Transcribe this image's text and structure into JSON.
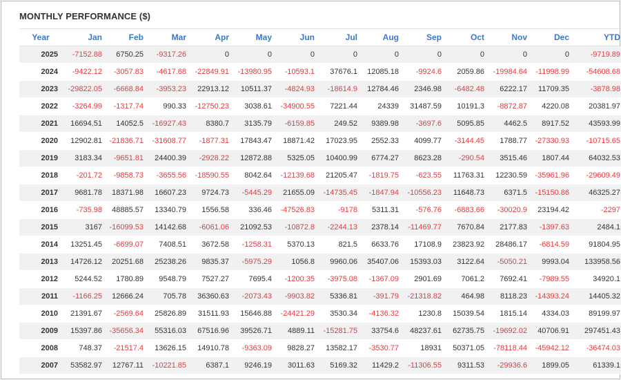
{
  "title": "MONTHLY PERFORMANCE ($)",
  "colors": {
    "header_text": "#3a78c8",
    "negative": "#e8383d",
    "positive": "#333333",
    "stripe": "#f1f1f1"
  },
  "columns": [
    "Year",
    "Jan",
    "Feb",
    "Mar",
    "Apr",
    "May",
    "Jun",
    "Jul",
    "Aug",
    "Sep",
    "Oct",
    "Nov",
    "Dec",
    "YTD"
  ],
  "rows": [
    [
      "2025",
      "-7152.88",
      "6750.25",
      "-9317.26",
      "0",
      "0",
      "0",
      "0",
      "0",
      "0",
      "0",
      "0",
      "0",
      "-9719.89"
    ],
    [
      "2024",
      "-9422.12",
      "-3057.83",
      "-4617.68",
      "-22849.91",
      "-13980.95",
      "-10593.1",
      "37676.1",
      "12085.18",
      "-9924.6",
      "2059.86",
      "-19984.64",
      "-11998.99",
      "-54608.68"
    ],
    [
      "2023",
      "-29822.05",
      "-6668.84",
      "-3953.23",
      "22913.12",
      "10511.37",
      "-4824.93",
      "-18614.9",
      "12784.46",
      "2346.98",
      "-6482.48",
      "6222.17",
      "11709.35",
      "-3878.98"
    ],
    [
      "2022",
      "-3264.99",
      "-1317.74",
      "990.33",
      "-12750.23",
      "3038.61",
      "-34900.55",
      "7221.44",
      "24339",
      "31487.59",
      "10191.3",
      "-8872.87",
      "4220.08",
      "20381.97"
    ],
    [
      "2021",
      "16694.51",
      "14052.5",
      "-16927.43",
      "8380.7",
      "3135.79",
      "-6159.85",
      "249.52",
      "9389.98",
      "-3697.6",
      "5095.85",
      "4462.5",
      "8917.52",
      "43593.99"
    ],
    [
      "2020",
      "12902.81",
      "-21836.71",
      "-31608.77",
      "-1877.31",
      "17843.47",
      "18871.42",
      "17023.95",
      "2552.33",
      "4099.77",
      "-3144.45",
      "1788.77",
      "-27330.93",
      "-10715.65"
    ],
    [
      "2019",
      "3183.34",
      "-9651.81",
      "24400.39",
      "-2928.22",
      "12872.88",
      "5325.05",
      "10400.99",
      "6774.27",
      "8623.28",
      "-290.54",
      "3515.46",
      "1807.44",
      "64032.53"
    ],
    [
      "2018",
      "-201.72",
      "-9858.73",
      "-3655.56",
      "-18590.55",
      "8042.64",
      "-12139.68",
      "21205.47",
      "-1819.75",
      "-623.55",
      "11763.31",
      "12230.59",
      "-35961.96",
      "-29609.49"
    ],
    [
      "2017",
      "9681.78",
      "18371.98",
      "16607.23",
      "9724.73",
      "-5445.29",
      "21655.09",
      "-14735.45",
      "-1847.94",
      "-10556.23",
      "11648.73",
      "6371.5",
      "-15150.86",
      "46325.27"
    ],
    [
      "2016",
      "-735.98",
      "48885.57",
      "13340.79",
      "1556.58",
      "336.46",
      "-47526.83",
      "-9178",
      "5311.31",
      "-576.76",
      "-6883.66",
      "-30020.9",
      "23194.42",
      "-2297"
    ],
    [
      "2015",
      "3167",
      "-16099.53",
      "14142.68",
      "-6061.06",
      "21092.53",
      "-10872.8",
      "-2244.13",
      "2378.14",
      "-11469.77",
      "7670.84",
      "2177.83",
      "-1397.63",
      "2484.1"
    ],
    [
      "2014",
      "13251.45",
      "-6699.07",
      "7408.51",
      "3672.58",
      "-1258.31",
      "5370.13",
      "821.5",
      "6633.76",
      "17108.9",
      "23823.92",
      "28486.17",
      "-6814.59",
      "91804.95"
    ],
    [
      "2013",
      "14726.12",
      "20251.68",
      "25238.26",
      "9835.37",
      "-5975.29",
      "1056.8",
      "9960.06",
      "35407.06",
      "15393.03",
      "3122.64",
      "-5050.21",
      "9993.04",
      "133958.56"
    ],
    [
      "2012",
      "5244.52",
      "1780.89",
      "9548.79",
      "7527.27",
      "7695.4",
      "-1200.35",
      "-3975.08",
      "-1367.09",
      "2901.69",
      "7061.2",
      "7692.41",
      "-7989.55",
      "34920.1"
    ],
    [
      "2011",
      "-1166.25",
      "12666.24",
      "705.78",
      "36360.63",
      "-2073.43",
      "-9903.82",
      "5336.81",
      "-391.79",
      "-21318.82",
      "464.98",
      "8118.23",
      "-14393.24",
      "14405.32"
    ],
    [
      "2010",
      "21391.67",
      "-2569.64",
      "25826.89",
      "31511.93",
      "15646.88",
      "-24421.29",
      "3530.34",
      "-4136.32",
      "1230.8",
      "15039.54",
      "1815.14",
      "4334.03",
      "89199.97"
    ],
    [
      "2009",
      "15397.86",
      "-35656.34",
      "55316.03",
      "67516.96",
      "39526.71",
      "4889.11",
      "-15281.75",
      "33754.6",
      "48237.61",
      "62735.75",
      "-19692.02",
      "40706.91",
      "297451.43"
    ],
    [
      "2008",
      "748.37",
      "-21517.4",
      "13626.15",
      "14910.78",
      "-9363.09",
      "9828.27",
      "13582.17",
      "-3530.77",
      "18931",
      "50371.05",
      "-78118.44",
      "-45942.12",
      "-36474.03"
    ],
    [
      "2007",
      "53582.97",
      "12767.11",
      "-10221.85",
      "6387.1",
      "9246.19",
      "3011.63",
      "5169.32",
      "11429.2",
      "-11306.55",
      "9311.53",
      "-29936.6",
      "1899.05",
      "61339.1"
    ]
  ]
}
